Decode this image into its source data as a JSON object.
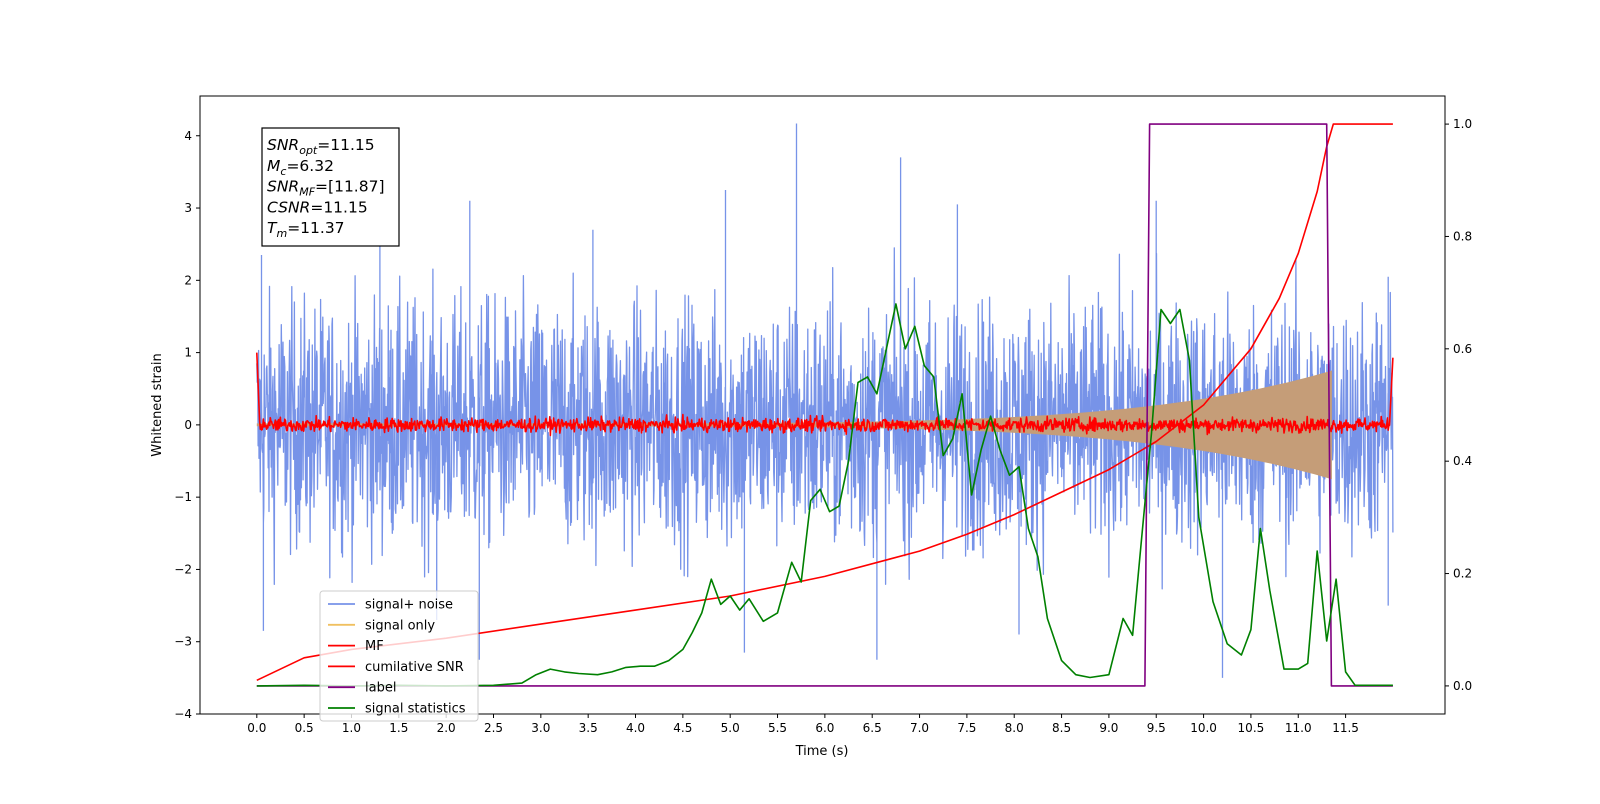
{
  "chart_data": {
    "type": "line",
    "xlabel": "Time (s)",
    "ylabel": "Whitened strain",
    "xlim": [
      -0.6,
      12.55
    ],
    "xticks": [
      0.0,
      0.5,
      1.0,
      1.5,
      2.0,
      2.5,
      3.0,
      3.5,
      4.0,
      4.5,
      5.0,
      5.5,
      6.0,
      6.5,
      7.0,
      7.5,
      8.0,
      8.5,
      9.0,
      9.5,
      10.0,
      10.5,
      11.0,
      11.5
    ],
    "xtick_labels": [
      "0.0",
      "0.5",
      "1.0",
      "1.5",
      "2.0",
      "2.5",
      "3.0",
      "3.5",
      "4.0",
      "4.5",
      "5.0",
      "5.5",
      "6.0",
      "6.5",
      "7.0",
      "7.5",
      "8.0",
      "8.5",
      "9.0",
      "9.5",
      "10.0",
      "10.5",
      "11.0",
      "11.5"
    ],
    "ylim_left": [
      -4,
      4.55
    ],
    "yticks_left": [
      -4,
      -3,
      -2,
      -1,
      0,
      1,
      2,
      3,
      4
    ],
    "ytick_labels_left": [
      "−4",
      "−3",
      "−2",
      "−1",
      "0",
      "1",
      "2",
      "3",
      "4"
    ],
    "ylim_right": [
      -0.05,
      1.05
    ],
    "yticks_right": [
      0.0,
      0.2,
      0.4,
      0.6,
      0.8,
      1.0
    ],
    "ytick_labels_right": [
      "0.0",
      "0.2",
      "0.4",
      "0.6",
      "0.8",
      "1.0"
    ],
    "grid": false,
    "legend_position": "lower-left",
    "annotation": {
      "lines": [
        {
          "base": "SNR",
          "sub": "opt",
          "value": "=11.15"
        },
        {
          "base": "M",
          "sub": "c",
          "value": "=6.32"
        },
        {
          "base": "SNR",
          "sub": "MF",
          "value": "=[11.87]"
        },
        {
          "base": "CSNR",
          "sub": "",
          "value": "=11.15"
        },
        {
          "base": "T",
          "sub": "m",
          "value": "=11.37"
        }
      ]
    },
    "series": [
      {
        "name": "signal+ noise",
        "axis": "left",
        "color": "#7793e8",
        "kind": "noise",
        "x_range": [
          0.0,
          12.0
        ],
        "envelope_typical": 1.3,
        "peak_values": [
          [
            0.05,
            2.35
          ],
          [
            1.3,
            2.6
          ],
          [
            2.25,
            3.1
          ],
          [
            3.55,
            2.7
          ],
          [
            4.95,
            3.25
          ],
          [
            5.7,
            4.17
          ],
          [
            6.8,
            3.7
          ],
          [
            7.4,
            3.05
          ],
          [
            9.5,
            3.1
          ],
          [
            11.95,
            2.05
          ]
        ],
        "trough_values": [
          [
            0.07,
            -2.85
          ],
          [
            1.9,
            -2.7
          ],
          [
            2.35,
            -3.25
          ],
          [
            5.15,
            -3.15
          ],
          [
            6.55,
            -3.25
          ],
          [
            8.05,
            -2.9
          ],
          [
            10.2,
            -3.5
          ],
          [
            11.95,
            -2.5
          ]
        ]
      },
      {
        "name": "signal only",
        "axis": "left",
        "color": "#f0c060",
        "kind": "chirp",
        "x_range": [
          0.0,
          11.35
        ],
        "amplitude_start": 0.02,
        "amplitude_end": 0.75
      },
      {
        "name": "MF",
        "axis": "left",
        "color": "#ff0000",
        "kind": "mf",
        "x_range": [
          0.0,
          12.0
        ],
        "spike_start": 1.0,
        "spike_end": 0.93,
        "noise_level": 0.07
      },
      {
        "name": "cumilative SNR",
        "axis": "right",
        "color": "#ff0000",
        "points": [
          [
            0.0,
            0.01
          ],
          [
            0.5,
            0.05
          ],
          [
            1.0,
            0.065
          ],
          [
            2.0,
            0.085
          ],
          [
            3.0,
            0.11
          ],
          [
            4.0,
            0.135
          ],
          [
            5.0,
            0.16
          ],
          [
            6.0,
            0.195
          ],
          [
            7.0,
            0.24
          ],
          [
            7.5,
            0.27
          ],
          [
            8.0,
            0.305
          ],
          [
            8.5,
            0.345
          ],
          [
            9.0,
            0.385
          ],
          [
            9.5,
            0.435
          ],
          [
            10.0,
            0.5
          ],
          [
            10.5,
            0.6
          ],
          [
            10.8,
            0.69
          ],
          [
            11.0,
            0.77
          ],
          [
            11.2,
            0.88
          ],
          [
            11.3,
            0.96
          ],
          [
            11.37,
            1.0
          ],
          [
            12.0,
            1.0
          ]
        ]
      },
      {
        "name": "label",
        "axis": "right",
        "color": "#800080",
        "points": [
          [
            0.0,
            0.0
          ],
          [
            9.38,
            0.0
          ],
          [
            9.43,
            1.0
          ],
          [
            11.3,
            1.0
          ],
          [
            11.35,
            0.0
          ],
          [
            12.0,
            0.0
          ]
        ]
      },
      {
        "name": "signal statistics",
        "axis": "right",
        "color": "#008000",
        "points": [
          [
            0.0,
            0.0
          ],
          [
            0.5,
            0.001
          ],
          [
            1.0,
            0.0
          ],
          [
            1.5,
            0.001
          ],
          [
            2.0,
            0.0
          ],
          [
            2.5,
            0.001
          ],
          [
            2.8,
            0.005
          ],
          [
            2.95,
            0.02
          ],
          [
            3.1,
            0.03
          ],
          [
            3.25,
            0.025
          ],
          [
            3.4,
            0.022
          ],
          [
            3.6,
            0.02
          ],
          [
            3.75,
            0.025
          ],
          [
            3.9,
            0.033
          ],
          [
            4.05,
            0.035
          ],
          [
            4.2,
            0.035
          ],
          [
            4.35,
            0.045
          ],
          [
            4.5,
            0.065
          ],
          [
            4.6,
            0.095
          ],
          [
            4.7,
            0.13
          ],
          [
            4.8,
            0.19
          ],
          [
            4.9,
            0.145
          ],
          [
            5.0,
            0.16
          ],
          [
            5.1,
            0.135
          ],
          [
            5.2,
            0.155
          ],
          [
            5.35,
            0.115
          ],
          [
            5.5,
            0.13
          ],
          [
            5.65,
            0.22
          ],
          [
            5.75,
            0.185
          ],
          [
            5.85,
            0.33
          ],
          [
            5.95,
            0.35
          ],
          [
            6.05,
            0.31
          ],
          [
            6.15,
            0.32
          ],
          [
            6.25,
            0.4
          ],
          [
            6.35,
            0.54
          ],
          [
            6.45,
            0.55
          ],
          [
            6.55,
            0.52
          ],
          [
            6.65,
            0.6
          ],
          [
            6.75,
            0.68
          ],
          [
            6.85,
            0.6
          ],
          [
            6.95,
            0.64
          ],
          [
            7.05,
            0.57
          ],
          [
            7.15,
            0.55
          ],
          [
            7.25,
            0.41
          ],
          [
            7.35,
            0.44
          ],
          [
            7.45,
            0.52
          ],
          [
            7.55,
            0.34
          ],
          [
            7.65,
            0.42
          ],
          [
            7.75,
            0.48
          ],
          [
            7.85,
            0.42
          ],
          [
            7.95,
            0.375
          ],
          [
            8.05,
            0.39
          ],
          [
            8.15,
            0.28
          ],
          [
            8.25,
            0.23
          ],
          [
            8.35,
            0.12
          ],
          [
            8.5,
            0.045
          ],
          [
            8.65,
            0.02
          ],
          [
            8.8,
            0.015
          ],
          [
            9.0,
            0.02
          ],
          [
            9.15,
            0.12
          ],
          [
            9.25,
            0.09
          ],
          [
            9.35,
            0.27
          ],
          [
            9.45,
            0.45
          ],
          [
            9.55,
            0.67
          ],
          [
            9.65,
            0.645
          ],
          [
            9.75,
            0.67
          ],
          [
            9.85,
            0.58
          ],
          [
            9.95,
            0.3
          ],
          [
            10.1,
            0.15
          ],
          [
            10.25,
            0.075
          ],
          [
            10.4,
            0.055
          ],
          [
            10.5,
            0.1
          ],
          [
            10.6,
            0.28
          ],
          [
            10.7,
            0.17
          ],
          [
            10.85,
            0.03
          ],
          [
            11.0,
            0.03
          ],
          [
            11.1,
            0.04
          ],
          [
            11.2,
            0.24
          ],
          [
            11.3,
            0.08
          ],
          [
            11.4,
            0.19
          ],
          [
            11.5,
            0.025
          ],
          [
            11.6,
            0.001
          ],
          [
            12.0,
            0.001
          ]
        ]
      }
    ]
  },
  "legend": {
    "items": [
      {
        "label": "signal+ noise",
        "color": "#7793e8"
      },
      {
        "label": "signal only",
        "color": "#f0c060"
      },
      {
        "label": "MF",
        "color": "#ff0000"
      },
      {
        "label": "cumilative SNR",
        "color": "#ff0000"
      },
      {
        "label": "label",
        "color": "#800080"
      },
      {
        "label": "signal statistics",
        "color": "#008000"
      }
    ]
  }
}
